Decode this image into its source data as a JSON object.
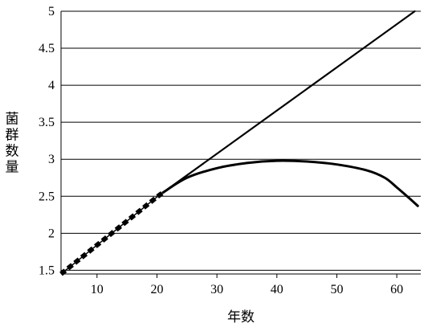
{
  "chart_data": {
    "type": "line",
    "title": "",
    "xlabel": "年数",
    "ylabel": "菌群数量",
    "xlim": [
      4,
      64
    ],
    "ylim": [
      1.45,
      5
    ],
    "x_ticks": [
      10,
      20,
      30,
      40,
      50,
      60
    ],
    "y_ticks": [
      1.5,
      2,
      2.5,
      3,
      3.5,
      4,
      4.5,
      5
    ],
    "y_tick_labels": [
      "1.5",
      "2",
      "2.5",
      "3",
      "3.5",
      "4",
      "4.5",
      "5"
    ],
    "x_tick_labels": [
      "10",
      "20",
      "30",
      "40",
      "50",
      "60"
    ],
    "grid": "horizontal",
    "legend": "none",
    "series": [
      {
        "style": "dashed-bold",
        "x": [
          4,
          6,
          8,
          10,
          12,
          14,
          16,
          18,
          20,
          21
        ],
        "y": [
          1.45,
          1.58,
          1.71,
          1.84,
          1.97,
          2.1,
          2.23,
          2.36,
          2.49,
          2.55
        ]
      },
      {
        "style": "solid",
        "x": [
          21,
          63
        ],
        "y": [
          2.55,
          5.0
        ]
      },
      {
        "style": "solid-bold",
        "x": [
          21,
          25,
          30,
          35,
          40,
          45,
          50,
          55,
          58,
          60,
          62,
          63.5
        ],
        "y": [
          2.55,
          2.75,
          2.88,
          2.95,
          2.98,
          2.97,
          2.93,
          2.85,
          2.75,
          2.62,
          2.48,
          2.37
        ]
      }
    ],
    "colors": {
      "line": "#000000",
      "grid": "#000000"
    }
  }
}
